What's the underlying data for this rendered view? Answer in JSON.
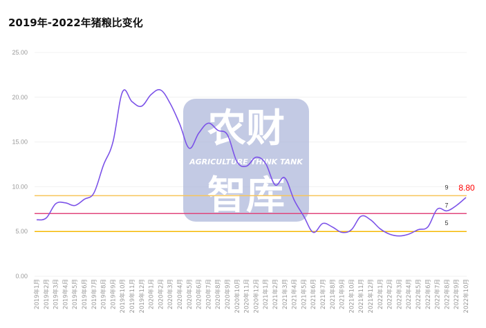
{
  "chart_data": {
    "type": "line",
    "title": "2019年-2022年猪粮比变化",
    "xlabel": "",
    "ylabel": "",
    "ylim": [
      0,
      25
    ],
    "yticks": [
      "0.00",
      "5.00",
      "10.00",
      "15.00",
      "20.00",
      "25.00"
    ],
    "grid": true,
    "categories": [
      "2019年1月",
      "2019年2月",
      "2019年3月",
      "2019年4月",
      "2019年5月",
      "2019年6月",
      "2019年7月",
      "2019年8月",
      "2019年9月",
      "2019年10月",
      "2019年11月",
      "2019年12月",
      "2020年1月",
      "2020年2月",
      "2020年3月",
      "2020年4月",
      "2020年5月",
      "2020年6月",
      "2020年7月",
      "2020年8月",
      "2020年9月",
      "2020年10月",
      "2020年11月",
      "2020年12月",
      "2021年1月",
      "2021年2月",
      "2021年3月",
      "2021年4月",
      "2021年5月",
      "2021年6月",
      "2021年7月",
      "2021年8月",
      "2021年9月",
      "2021年10月",
      "2021年11月",
      "2021年12月",
      "2022年1月",
      "2022年2月",
      "2022年3月",
      "2022年4月",
      "2022年5月",
      "2022年6月",
      "2022年7月",
      "2022年8月",
      "2022年9月",
      "2022年10月"
    ],
    "values": [
      6.3,
      6.5,
      8.1,
      8.2,
      7.9,
      8.6,
      9.3,
      12.4,
      15.0,
      20.6,
      19.5,
      19.0,
      20.3,
      20.8,
      19.3,
      17.0,
      14.3,
      16.0,
      17.1,
      16.3,
      15.8,
      12.8,
      12.3,
      13.3,
      12.6,
      10.2,
      11.0,
      8.5,
      6.7,
      4.9,
      5.9,
      5.5,
      4.9,
      5.2,
      6.7,
      6.3,
      5.3,
      4.7,
      4.5,
      4.7,
      5.2,
      5.5,
      7.5,
      7.3,
      7.9,
      8.8
    ],
    "line_color": "#7b52e8",
    "reference_lines": [
      {
        "value": 9,
        "label": "9",
        "color": "#f7c55a"
      },
      {
        "value": 7,
        "label": "7",
        "color": "#e0457b"
      },
      {
        "value": 5,
        "label": "5",
        "color": "#f5b800"
      }
    ],
    "last_value_label": "8.80",
    "last_value_color": "#ff0000"
  },
  "watermark": {
    "line1": "农财",
    "line2": "AGRICULTURE THINK TANK",
    "line3": "智库"
  }
}
